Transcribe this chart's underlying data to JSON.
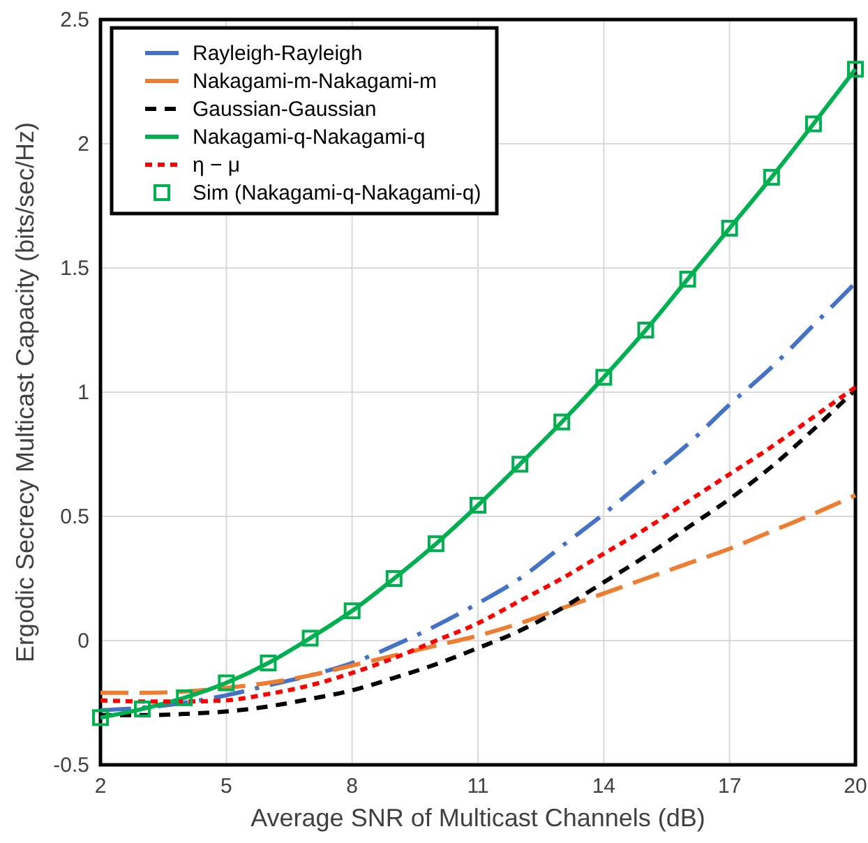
{
  "chart_data": {
    "type": "line",
    "xlabel": "Average SNR of Multicast Channels (dB)",
    "ylabel": "Ergodic Secrecy Multicast Capacity (bits/sec/Hz)",
    "x": [
      2,
      3,
      4,
      5,
      6,
      7,
      8,
      9,
      10,
      11,
      12,
      13,
      14,
      15,
      16,
      17,
      18,
      19,
      20
    ],
    "xlim": [
      2,
      20
    ],
    "xticks": [
      2,
      5,
      8,
      11,
      14,
      17,
      20
    ],
    "ylim": [
      -0.5,
      2.5
    ],
    "yticks": [
      -0.5,
      0,
      0.5,
      1,
      1.5,
      2,
      2.5
    ],
    "grid": true,
    "legend": "top left",
    "series": [
      {
        "name": "Rayleigh-Rayleigh",
        "color": "#4472c4",
        "line_style": "dashdot",
        "marker": "none",
        "values": [
          -0.28,
          -0.27,
          -0.25,
          -0.22,
          -0.18,
          -0.14,
          -0.09,
          -0.02,
          0.06,
          0.15,
          0.25,
          0.38,
          0.51,
          0.65,
          0.79,
          0.95,
          1.1,
          1.27,
          1.44
        ]
      },
      {
        "name": "Nakagami-m-Nakagami-m",
        "color": "#ed7d31",
        "line_style": "longdash",
        "marker": "none",
        "values": [
          -0.21,
          -0.21,
          -0.205,
          -0.19,
          -0.17,
          -0.14,
          -0.1,
          -0.06,
          -0.02,
          0.02,
          0.07,
          0.13,
          0.19,
          0.25,
          0.31,
          0.37,
          0.44,
          0.51,
          0.585
        ]
      },
      {
        "name": "Gaussian-Gaussian",
        "color": "#000000",
        "line_style": "dashed",
        "marker": "none",
        "values": [
          -0.3,
          -0.3,
          -0.295,
          -0.285,
          -0.265,
          -0.235,
          -0.2,
          -0.15,
          -0.095,
          -0.03,
          0.04,
          0.13,
          0.235,
          0.34,
          0.455,
          0.57,
          0.7,
          0.85,
          1.01
        ]
      },
      {
        "name": "Nakagami-q-Nakagami-q",
        "color": "#00b050",
        "line_style": "solid",
        "marker": "none",
        "values": [
          -0.31,
          -0.275,
          -0.23,
          -0.17,
          -0.09,
          0.01,
          0.12,
          0.25,
          0.39,
          0.545,
          0.71,
          0.88,
          1.06,
          1.25,
          1.455,
          1.66,
          1.865,
          2.08,
          2.3
        ]
      },
      {
        "name": "η − μ",
        "color": "#ff0000",
        "line_style": "dotted",
        "marker": "none",
        "values": [
          -0.24,
          -0.245,
          -0.245,
          -0.24,
          -0.215,
          -0.18,
          -0.13,
          -0.07,
          0,
          0.07,
          0.16,
          0.25,
          0.35,
          0.45,
          0.56,
          0.67,
          0.78,
          0.9,
          1.02
        ]
      },
      {
        "name": "Sim (Nakagami-q-Nakagami-q)",
        "type": "scatter",
        "color": "#00b050",
        "marker": "square",
        "values": [
          -0.31,
          -0.275,
          -0.23,
          -0.17,
          -0.09,
          0.01,
          0.12,
          0.25,
          0.39,
          0.545,
          0.71,
          0.88,
          1.06,
          1.25,
          1.455,
          1.66,
          1.865,
          2.08,
          2.3
        ]
      }
    ]
  }
}
